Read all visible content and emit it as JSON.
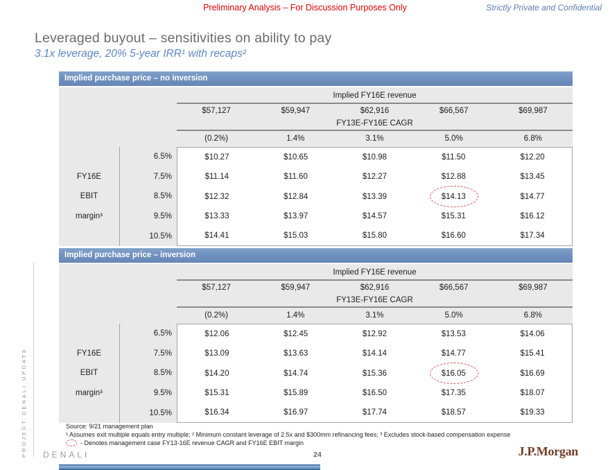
{
  "header": {
    "notice": "Preliminary Analysis – For Discussion Purposes Only",
    "confidential": "Strictly Private and Confidential"
  },
  "slide": {
    "title": "Leveraged buyout – sensitivities on ability to pay",
    "subtitle": "3.1x leverage, 20% 5-year IRR¹ with recaps²"
  },
  "colors": {
    "header_bar_blue": "#7092c0",
    "notice_red": "#e00000",
    "subtitle_blue": "#5c87c5",
    "panel_gray": "#e9e9e9",
    "highlight_red": "#dd5252",
    "jpmorgan_brown": "#713e29"
  },
  "tables": [
    {
      "title": "Implied purchase price – no inversion",
      "revenue_header": "Implied FY16E revenue",
      "revenues": [
        "$57,127",
        "$59,947",
        "$62,916",
        "$66,567",
        "$69,987"
      ],
      "cagr_header": "FY13E-FY16E CAGR",
      "cagrs": [
        "(0.2%)",
        "1.4%",
        "3.1%",
        "5.0%",
        "6.8%"
      ],
      "row_axis": [
        "FY16E",
        "EBIT",
        "margin³"
      ],
      "margins": [
        "6.5%",
        "7.5%",
        "8.5%",
        "9.5%",
        "10.5%"
      ],
      "rows": [
        [
          "$10.27",
          "$10.65",
          "$10.98",
          "$11.50",
          "$12.20"
        ],
        [
          "$11.14",
          "$11.60",
          "$12.27",
          "$12.88",
          "$13.45"
        ],
        [
          "$12.32",
          "$12.84",
          "$13.39",
          "$14.13",
          "$14.77"
        ],
        [
          "$13.33",
          "$13.97",
          "$14.57",
          "$15.31",
          "$16.12"
        ],
        [
          "$14.41",
          "$15.03",
          "$15.80",
          "$16.60",
          "$17.34"
        ]
      ],
      "highlight": {
        "row": 2,
        "col": 3,
        "value": "$14.13"
      }
    },
    {
      "title": "Implied purchase price – inversion",
      "revenue_header": "Implied FY16E revenue",
      "revenues": [
        "$57,127",
        "$59,947",
        "$62,916",
        "$66,567",
        "$69,987"
      ],
      "cagr_header": "FY13E-FY16E CAGR",
      "cagrs": [
        "(0.2%)",
        "1.4%",
        "3.1%",
        "5.0%",
        "6.8%"
      ],
      "row_axis": [
        "FY16E",
        "EBIT",
        "margin³"
      ],
      "margins": [
        "6.5%",
        "7.5%",
        "8.5%",
        "9.5%",
        "10.5%"
      ],
      "rows": [
        [
          "$12.06",
          "$12.45",
          "$12.92",
          "$13.53",
          "$14.06"
        ],
        [
          "$13.09",
          "$13.63",
          "$14.14",
          "$14.77",
          "$15.41"
        ],
        [
          "$14.20",
          "$14.74",
          "$15.36",
          "$16.05",
          "$16.69"
        ],
        [
          "$15.31",
          "$15.89",
          "$16.50",
          "$17.35",
          "$18.07"
        ],
        [
          "$16.34",
          "$16.97",
          "$17.74",
          "$18.57",
          "$19.33"
        ]
      ],
      "highlight": {
        "row": 2,
        "col": 3,
        "value": "$16.05"
      }
    }
  ],
  "footer": {
    "source": "Source: 9/21 management plan",
    "footnote1": "¹ Assumes exit multiple equals entry multiple; ² Minimum constant leverage of 2.5x and $300mm refinancing fees; ³ Excludes stock-based compensation expense",
    "footnote2": "- Denotes management case FY13-16E revenue CAGR and FY16E EBIT margin",
    "project_code": "DENALI",
    "page_number": "24",
    "logo": "J.P.Morgan"
  },
  "sidebar": {
    "vertical_label": "PROJECT DENALI UPDATE"
  }
}
